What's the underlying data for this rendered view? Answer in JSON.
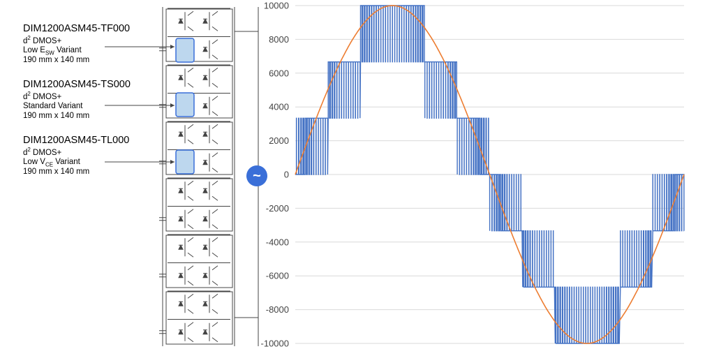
{
  "modules": [
    {
      "part": "DIM1200ASM45-TF000",
      "tech": "d",
      "tech_sup": "2",
      "tech_rest": " DMOS+",
      "variant_pre": "Low E",
      "variant_sub": "SW",
      "variant_post": " Variant",
      "size": "190 mm x 140 mm"
    },
    {
      "part": "DIM1200ASM45-TS000",
      "tech": "d",
      "tech_sup": "2",
      "tech_rest": " DMOS+",
      "variant_pre": "Standard Variant",
      "variant_sub": "",
      "variant_post": "",
      "size": "190 mm x 140 mm"
    },
    {
      "part": "DIM1200ASM45-TL000",
      "tech": "d",
      "tech_sup": "2",
      "tech_rest": " DMOS+",
      "variant_pre": "Low V",
      "variant_sub": "CE",
      "variant_post": " Variant",
      "size": "190 mm x 140 mm"
    }
  ],
  "output_symbol": "~",
  "colors": {
    "pwm": "#4472c4",
    "sine": "#ed7d31",
    "grid": "#d9d9d9",
    "badge": "#3a6fd8",
    "highlight": "#bdd7ee"
  },
  "chart_data": {
    "type": "line",
    "ylim": [
      -10000,
      10000
    ],
    "yticks": [
      10000,
      8000,
      6000,
      4000,
      2000,
      0,
      -2000,
      -4000,
      -6000,
      -8000,
      -10000
    ],
    "series": [
      {
        "style": "multilevel-pwm",
        "levels": [
          0,
          3333,
          6667,
          10000,
          6667,
          3333,
          0,
          -3333,
          -6667,
          -10000,
          -6667,
          -3333,
          0
        ]
      },
      {
        "style": "sine",
        "amplitude": 10000,
        "period_fraction": 1.0
      }
    ],
    "x_range": [
      0,
      1
    ]
  }
}
